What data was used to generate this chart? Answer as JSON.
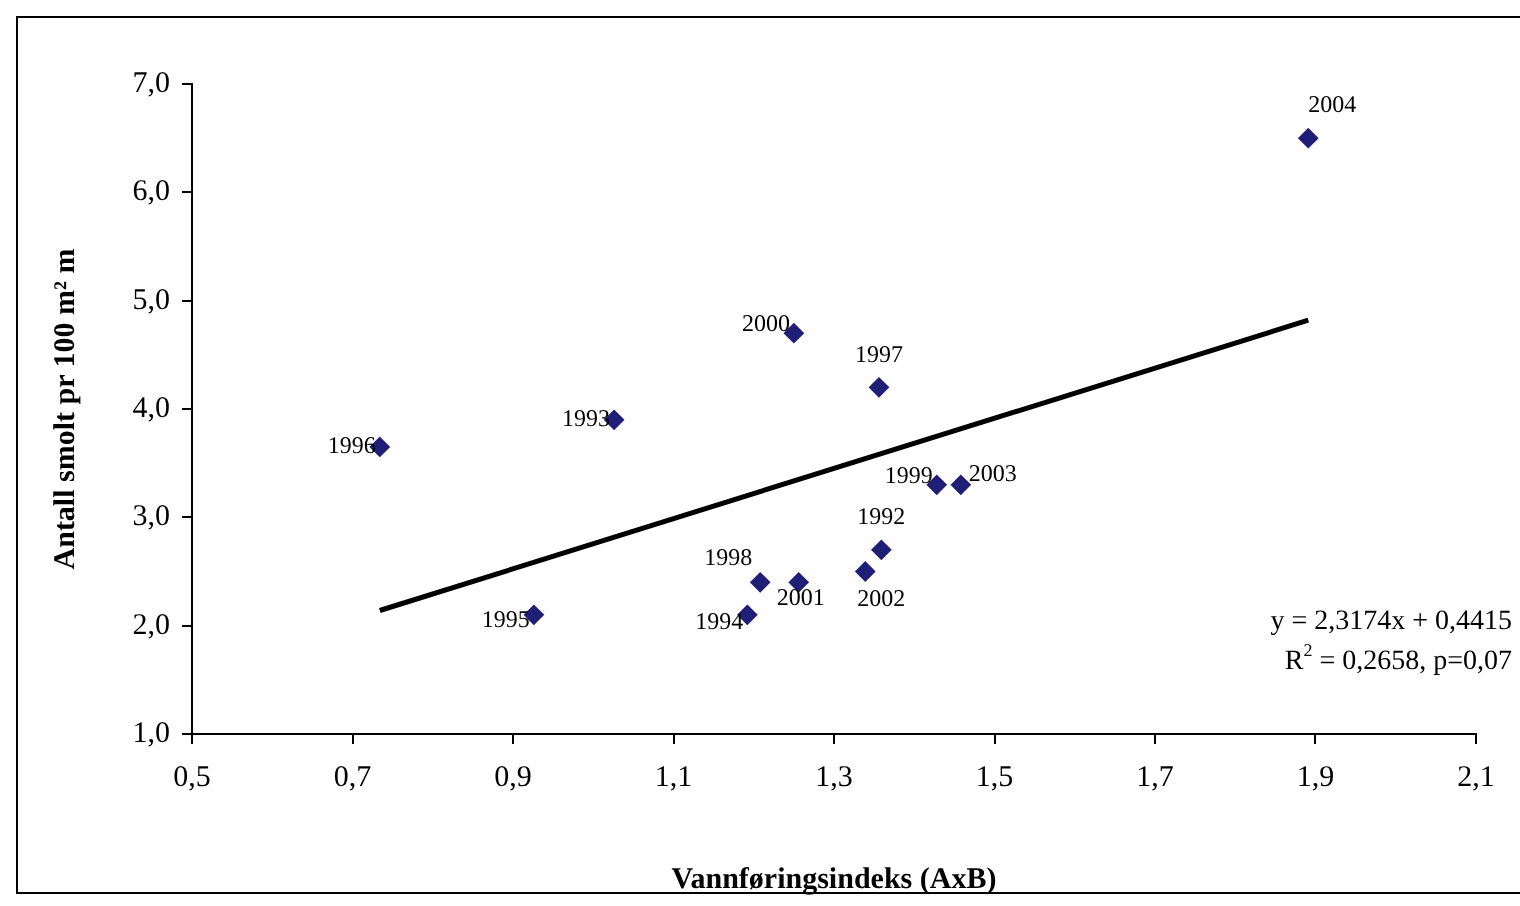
{
  "chart_data": {
    "type": "scatter",
    "xlabel": "Vannføringsindeks (AxB)",
    "ylabel": "Antall smolt pr 100 m² m",
    "x": [
      0.734,
      1.026,
      0.926,
      1.192,
      1.208,
      1.256,
      1.25,
      1.356,
      1.428,
      1.458,
      1.359,
      1.339,
      1.891
    ],
    "series": [
      {
        "color": "#1f1f78",
        "values": [
          3.65,
          3.9,
          2.1,
          2.1,
          2.4,
          2.4,
          4.7,
          4.2,
          3.3,
          3.3,
          2.7,
          2.5,
          6.5
        ]
      },
      {
        "type": "line",
        "color": "#000000",
        "x": [
          0.734,
          1.891
        ],
        "values": [
          2.14,
          4.82
        ],
        "marker": "none"
      }
    ],
    "marker": "diamond",
    "xlim": [
      0.5,
      2.1
    ],
    "ylim": [
      1,
      7
    ],
    "xticks": [
      {
        "value": 0.5,
        "label": "0,5"
      },
      {
        "value": 0.7,
        "label": "0,7"
      },
      {
        "value": 0.9,
        "label": "0,9"
      },
      {
        "value": 1.1,
        "label": "1,1"
      },
      {
        "value": 1.3,
        "label": "1,3"
      },
      {
        "value": 1.5,
        "label": "1,5"
      },
      {
        "value": 1.7,
        "label": "1,7"
      },
      {
        "value": 1.9,
        "label": "1,9"
      },
      {
        "value": 2.1,
        "label": "2,1"
      }
    ],
    "yticks": [
      {
        "value": 1,
        "label": "1,0"
      },
      {
        "value": 2,
        "label": "2,0"
      },
      {
        "value": 3,
        "label": "3,0"
      },
      {
        "value": 4,
        "label": "4,0"
      },
      {
        "value": 5,
        "label": "5,0"
      },
      {
        "value": 6,
        "label": "6,0"
      },
      {
        "value": 7,
        "label": "7,0"
      }
    ],
    "grid": false,
    "legend": false,
    "annotations": [
      {
        "text": "1996",
        "x": 0.734,
        "y": 3.65
      },
      {
        "text": "1993",
        "x": 1.026,
        "y": 3.9
      },
      {
        "text": "1995",
        "x": 0.926,
        "y": 2.1
      },
      {
        "text": "1994",
        "x": 1.192,
        "y": 2.1
      },
      {
        "text": "1998",
        "x": 1.208,
        "y": 2.4
      },
      {
        "text": "2001",
        "x": 1.256,
        "y": 2.4
      },
      {
        "text": "2000",
        "x": 1.25,
        "y": 4.7
      },
      {
        "text": "1997",
        "x": 1.356,
        "y": 4.2
      },
      {
        "text": "1999",
        "x": 1.428,
        "y": 3.3
      },
      {
        "text": "2003",
        "x": 1.458,
        "y": 3.3
      },
      {
        "text": "1992",
        "x": 1.359,
        "y": 2.7
      },
      {
        "text": "2002",
        "x": 1.339,
        "y": 2.5
      },
      {
        "text": "2004",
        "x": 1.891,
        "y": 6.5
      },
      "y = 2,3174x + 0,4415",
      "R$^{2}$ = 0,2658, p=0,07"
    ]
  }
}
